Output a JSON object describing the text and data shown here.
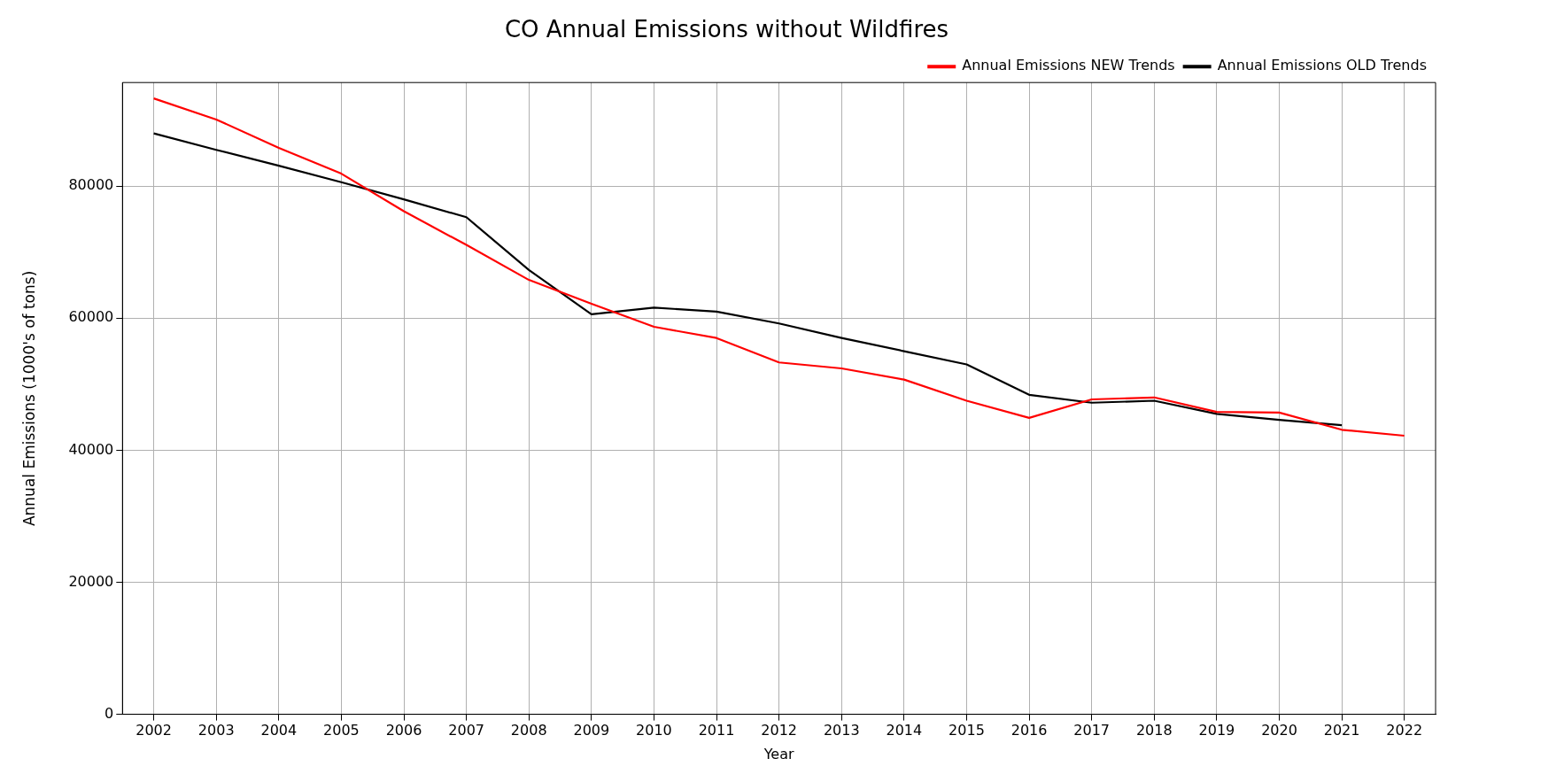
{
  "chart_data": {
    "type": "line",
    "title": "CO Annual Emissions without Wildfires",
    "xlabel": "Year",
    "ylabel": "Annual Emissions (1000's of tons)",
    "categories": [
      "2002",
      "2003",
      "2004",
      "2005",
      "2006",
      "2007",
      "2008",
      "2009",
      "2010",
      "2011",
      "2012",
      "2013",
      "2014",
      "2015",
      "2016",
      "2017",
      "2018",
      "2019",
      "2020",
      "2021",
      "2022"
    ],
    "series": [
      {
        "name": "Annual Emissions NEW Trends",
        "color": "#ff0000",
        "values": [
          93300,
          90100,
          85800,
          81900,
          76200,
          71100,
          65800,
          62200,
          58700,
          57000,
          53300,
          52400,
          50700,
          47500,
          44900,
          47700,
          48000,
          45800,
          45700,
          43100,
          42200
        ]
      },
      {
        "name": "Annual Emissions OLD Trends",
        "color": "#000000",
        "values": [
          88000,
          85500,
          83100,
          80600,
          78000,
          75300,
          67300,
          60600,
          61600,
          61000,
          59200,
          57000,
          55000,
          53000,
          48400,
          47200,
          47500,
          45500,
          44600,
          43800,
          null
        ]
      }
    ],
    "ylim": [
      0,
      95700
    ],
    "yticks": [
      0,
      20000,
      40000,
      60000,
      80000
    ],
    "grid": true,
    "legend": "top right",
    "marker": "none",
    "line_style": "solid"
  }
}
